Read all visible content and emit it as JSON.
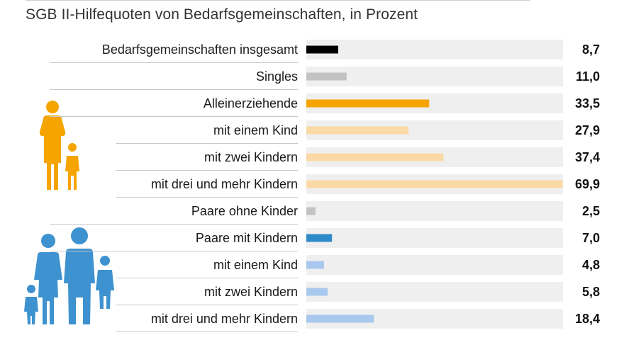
{
  "title": "SGB II-Hilfequoten von Bedarfsgemeinschaften, in Prozent",
  "colors": {
    "track": "#efefef",
    "divider": "#c8c8c8",
    "black": "#000000",
    "gray": "#c3c3c3",
    "orange": "#f5a400",
    "orange_light": "#fad9a6",
    "blue": "#2e8bc9",
    "blue_light": "#a9c8ee",
    "icon_orange": "#f5a400",
    "icon_blue": "#3d92cf"
  },
  "chart_data": {
    "type": "bar",
    "orientation": "horizontal",
    "title": "SGB II-Hilfequoten von Bedarfsgemeinschaften, in Prozent",
    "xlim": [
      0,
      70
    ],
    "categories": [
      "Bedarfsgemeinschaften insgesamt",
      "Singles",
      "Alleinerziehende",
      "mit einem Kind",
      "mit zwei Kindern",
      "mit drei und mehr Kindern",
      "Paare ohne Kinder",
      "Paare mit Kindern",
      "mit einem Kind",
      "mit zwei Kindern",
      "mit drei und mehr Kindern"
    ],
    "values": [
      8.7,
      11.0,
      33.5,
      27.9,
      37.4,
      69.9,
      2.5,
      7.0,
      4.8,
      5.8,
      18.4
    ],
    "value_labels": [
      "8,7",
      "11,0",
      "33,5",
      "27,9",
      "37,4",
      "69,9",
      "2,5",
      "7,0",
      "4,8",
      "5,8",
      "18,4"
    ],
    "bar_colors": [
      "black",
      "gray",
      "orange",
      "orange_light",
      "orange_light",
      "orange_light",
      "gray",
      "blue",
      "blue_light",
      "blue_light",
      "blue_light"
    ],
    "subgroup": [
      false,
      false,
      false,
      true,
      true,
      true,
      false,
      false,
      true,
      true,
      true
    ],
    "legend": "none",
    "grid": false
  },
  "icons": {
    "single_parent": "single-parent-family-icon",
    "couple_family": "couple-family-icon"
  }
}
